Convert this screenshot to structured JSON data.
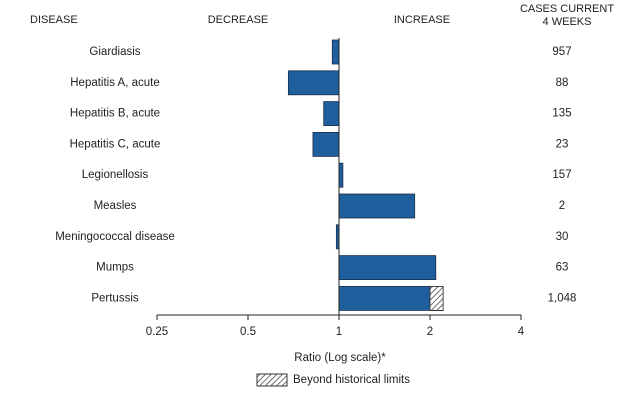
{
  "chart_data": {
    "type": "bar",
    "orientation": "horizontal",
    "log_scale": true,
    "headers": {
      "disease": "DISEASE",
      "decrease": "DECREASE",
      "increase": "INCREASE",
      "cases_line1": "CASES CURRENT",
      "cases_line2": "4 WEEKS"
    },
    "categories": [
      "Giardiasis",
      "Hepatitis A, acute",
      "Hepatitis B, acute",
      "Hepatitis C, acute",
      "Legionellosis",
      "Measles",
      "Meningococcal disease",
      "Mumps",
      "Pertussis"
    ],
    "values": [
      0.95,
      0.68,
      0.89,
      0.82,
      1.03,
      1.78,
      0.98,
      2.09,
      2.21
    ],
    "historical_limits": [
      null,
      null,
      null,
      null,
      null,
      null,
      null,
      null,
      2.0
    ],
    "cases": [
      "957",
      "88",
      "135",
      "23",
      "157",
      "2",
      "30",
      "63",
      "1,048"
    ],
    "color": "#1f5f9e",
    "xlim": [
      0.25,
      4
    ],
    "xticks": [
      0.25,
      0.5,
      1,
      2,
      4
    ],
    "xlabel": "Ratio (Log scale)*",
    "legend_label": "Beyond historical limits"
  }
}
